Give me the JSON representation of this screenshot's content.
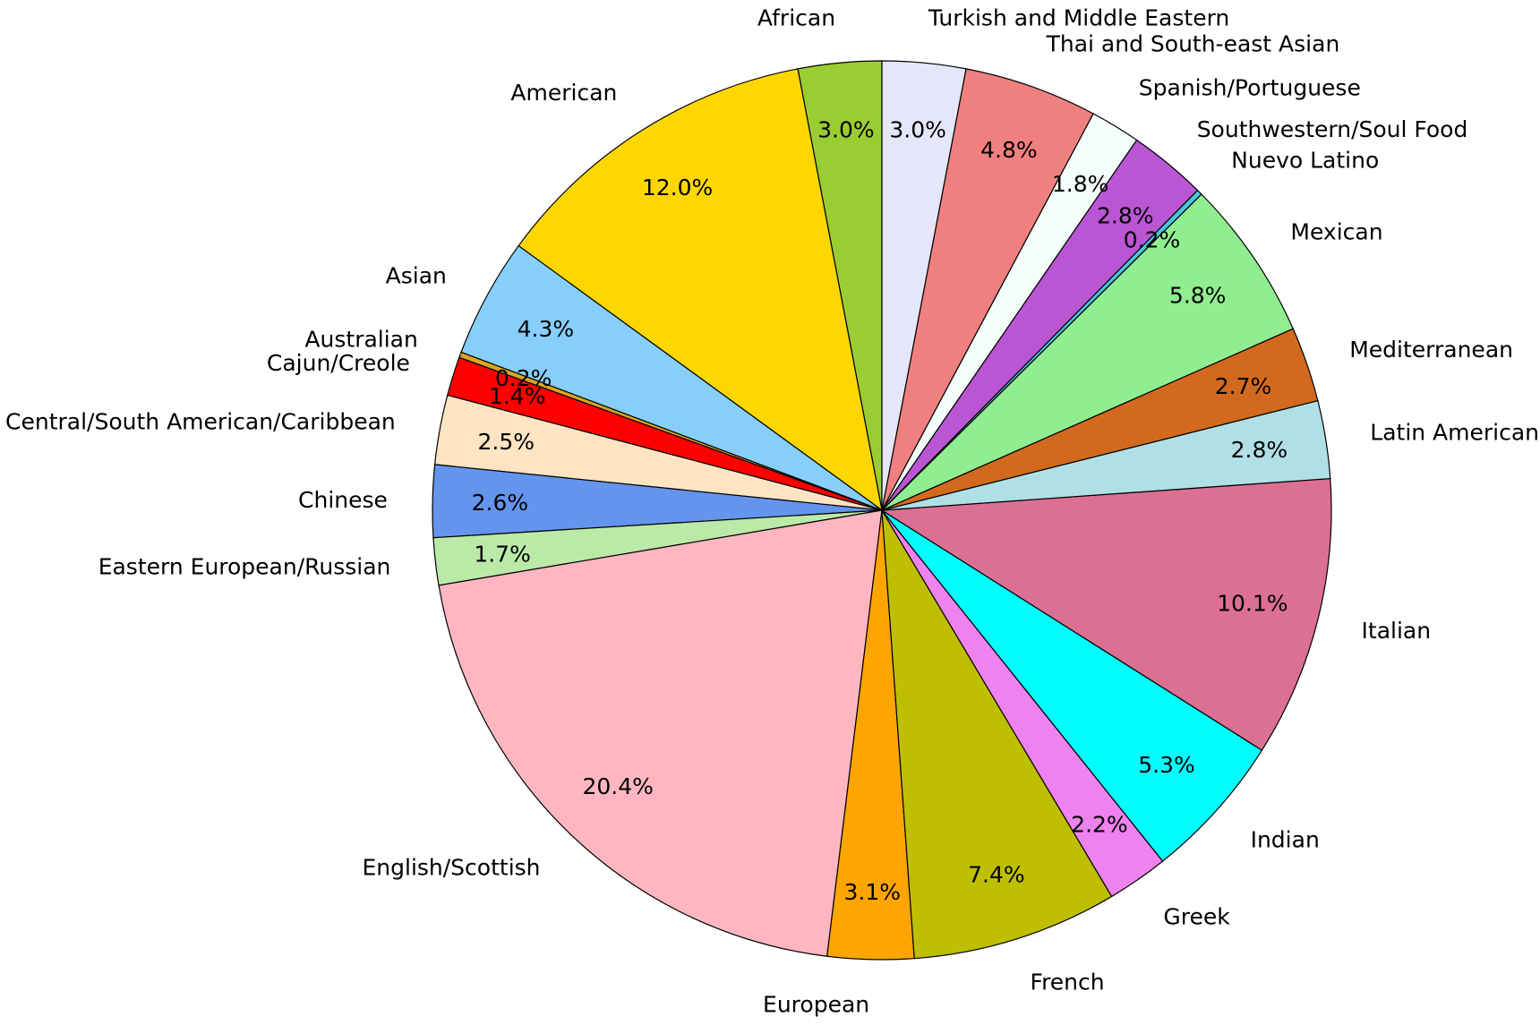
{
  "chart_data": {
    "type": "pie",
    "title": "",
    "direction": "counterclockwise",
    "start": "top",
    "slices": [
      {
        "label": "African",
        "value": 3.0,
        "pct_label": "3.0%",
        "color": "#9acd32"
      },
      {
        "label": "American",
        "value": 12.0,
        "pct_label": "12.0%",
        "color": "#ffd700"
      },
      {
        "label": "Asian",
        "value": 4.3,
        "pct_label": "4.3%",
        "color": "#87cefa"
      },
      {
        "label": "Australian",
        "value": 0.2,
        "pct_label": "0.2%",
        "color": "#daa520"
      },
      {
        "label": "Cajun/Creole",
        "value": 1.4,
        "pct_label": "1.4%",
        "color": "#ff0000"
      },
      {
        "label": "Central/South American/Caribbean",
        "value": 2.5,
        "pct_label": "2.5%",
        "color": "#ffe4c4"
      },
      {
        "label": "Chinese",
        "value": 2.6,
        "pct_label": "2.6%",
        "color": "#6495ed"
      },
      {
        "label": "Eastern European/Russian",
        "value": 1.7,
        "pct_label": "1.7%",
        "color": "#bbeaa8"
      },
      {
        "label": "English/Scottish",
        "value": 20.4,
        "pct_label": "20.4%",
        "color": "#ffb6c1"
      },
      {
        "label": "European",
        "value": 3.1,
        "pct_label": "3.1%",
        "color": "#ffa500"
      },
      {
        "label": "French",
        "value": 7.4,
        "pct_label": "7.4%",
        "color": "#bdbf00"
      },
      {
        "label": "Greek",
        "value": 2.2,
        "pct_label": "2.2%",
        "color": "#ee82ee"
      },
      {
        "label": "Indian",
        "value": 5.3,
        "pct_label": "5.3%",
        "color": "#00ffff"
      },
      {
        "label": "Italian",
        "value": 10.1,
        "pct_label": "10.1%",
        "color": "#db7093"
      },
      {
        "label": "Latin American",
        "value": 2.8,
        "pct_label": "2.8%",
        "color": "#b0e0e6"
      },
      {
        "label": "Mediterranean",
        "value": 2.7,
        "pct_label": "2.7%",
        "color": "#d2691e"
      },
      {
        "label": "Mexican",
        "value": 5.8,
        "pct_label": "5.8%",
        "color": "#90ee90"
      },
      {
        "label": "Nuevo Latino",
        "value": 0.2,
        "pct_label": "0.2%",
        "color": "#48c6e0"
      },
      {
        "label": "Southwestern/Soul Food",
        "value": 2.8,
        "pct_label": "2.8%",
        "color": "#ba55d3"
      },
      {
        "label": "Spanish/Portuguese",
        "value": 1.8,
        "pct_label": "1.8%",
        "color": "#f5fffa"
      },
      {
        "label": "Thai and South-east Asian",
        "value": 4.8,
        "pct_label": "4.8%",
        "color": "#f08080"
      },
      {
        "label": "Turkish and Middle Eastern",
        "value": 3.0,
        "pct_label": "3.0%",
        "color": "#e6e6fa"
      }
    ]
  }
}
